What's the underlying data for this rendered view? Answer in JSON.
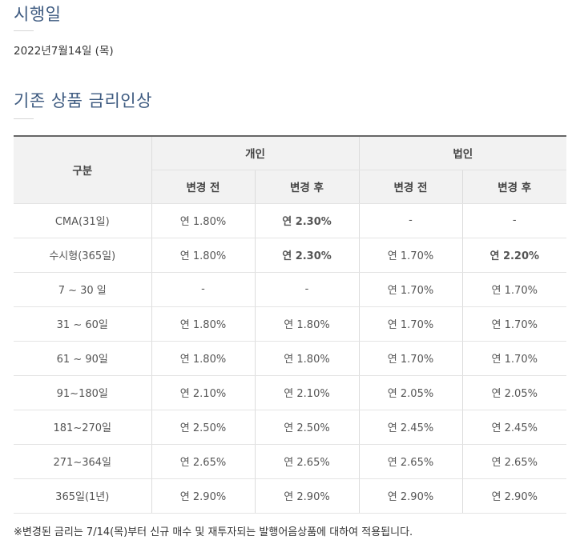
{
  "effective": {
    "title": "시행일",
    "date": "2022년7월14일 (목)"
  },
  "rate_section": {
    "title": "기존 상품 금리인상"
  },
  "table": {
    "header_category": "구분",
    "group_individual": "개인",
    "group_corporate": "법인",
    "before": "변경 전",
    "after": "변경 후",
    "rows": [
      {
        "label": "CMA(31일)",
        "ind_before": "연 1.80%",
        "ind_after": "연 2.30%",
        "corp_before": "-",
        "corp_after": "-"
      },
      {
        "label": "수시형(365일)",
        "ind_before": "연 1.80%",
        "ind_after": "연 2.30%",
        "corp_before": "연 1.70%",
        "corp_after": "연 2.20%"
      },
      {
        "label": "7 ~ 30 일",
        "ind_before": "-",
        "ind_after": "-",
        "corp_before": "연 1.70%",
        "corp_after": "연 1.70%"
      },
      {
        "label": "31 ~ 60일",
        "ind_before": "연 1.80%",
        "ind_after": "연 1.80%",
        "corp_before": "연 1.70%",
        "corp_after": "연 1.70%"
      },
      {
        "label": "61 ~ 90일",
        "ind_before": "연 1.80%",
        "ind_after": "연 1.80%",
        "corp_before": "연 1.70%",
        "corp_after": "연 1.70%"
      },
      {
        "label": "91~180일",
        "ind_before": "연 2.10%",
        "ind_after": "연 2.10%",
        "corp_before": "연 2.05%",
        "corp_after": "연 2.05%"
      },
      {
        "label": "181~270일",
        "ind_before": "연 2.50%",
        "ind_after": "연 2.50%",
        "corp_before": "연 2.45%",
        "corp_after": "연 2.45%"
      },
      {
        "label": "271~364일",
        "ind_before": "연 2.65%",
        "ind_after": "연 2.65%",
        "corp_before": "연 2.65%",
        "corp_after": "연 2.65%"
      },
      {
        "label": "365일(1년)",
        "ind_before": "연 2.90%",
        "ind_after": "연 2.90%",
        "corp_before": "연 2.90%",
        "corp_after": "연 2.90%"
      }
    ]
  },
  "colors": {
    "title": "#3d5a80",
    "highlight": "#e60012",
    "header_bg": "#f2f2f2"
  },
  "note": "※변경된 금리는 7/14(목)부터 신규 매수 및 재투자되는 발행어음상품에 대하여 적용됩니다."
}
